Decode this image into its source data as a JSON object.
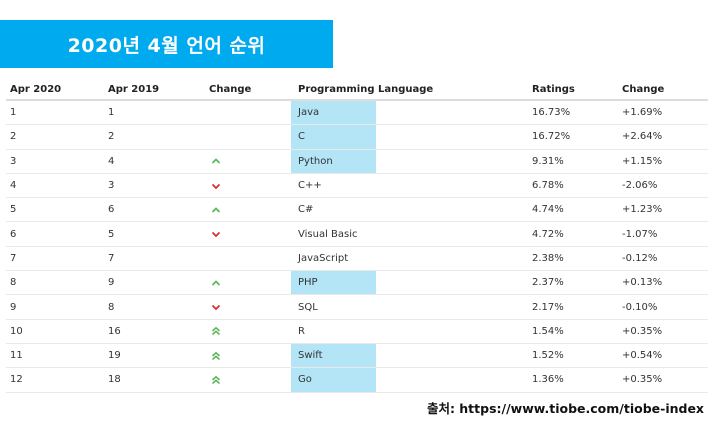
{
  "banner": {
    "title": "2020년 4월 언어 순위"
  },
  "table": {
    "headers": {
      "apr2020": "Apr 2020",
      "apr2019": "Apr 2019",
      "change": "Change",
      "language": "Programming Language",
      "ratings": "Ratings",
      "change2": "Change"
    },
    "rows": [
      {
        "apr2020": "1",
        "apr2019": "1",
        "trend": "none",
        "language": "Java",
        "ratings": "16.73%",
        "change": "+1.69%",
        "highlight": true
      },
      {
        "apr2020": "2",
        "apr2019": "2",
        "trend": "none",
        "language": "C",
        "ratings": "16.72%",
        "change": "+2.64%",
        "highlight": true
      },
      {
        "apr2020": "3",
        "apr2019": "4",
        "trend": "up",
        "language": "Python",
        "ratings": "9.31%",
        "change": "+1.15%",
        "highlight": true
      },
      {
        "apr2020": "4",
        "apr2019": "3",
        "trend": "down",
        "language": "C++",
        "ratings": "6.78%",
        "change": "-2.06%",
        "highlight": false
      },
      {
        "apr2020": "5",
        "apr2019": "6",
        "trend": "up",
        "language": "C#",
        "ratings": "4.74%",
        "change": "+1.23%",
        "highlight": false
      },
      {
        "apr2020": "6",
        "apr2019": "5",
        "trend": "down",
        "language": "Visual Basic",
        "ratings": "4.72%",
        "change": "-1.07%",
        "highlight": false
      },
      {
        "apr2020": "7",
        "apr2019": "7",
        "trend": "none",
        "language": "JavaScript",
        "ratings": "2.38%",
        "change": "-0.12%",
        "highlight": false
      },
      {
        "apr2020": "8",
        "apr2019": "9",
        "trend": "up",
        "language": "PHP",
        "ratings": "2.37%",
        "change": "+0.13%",
        "highlight": true
      },
      {
        "apr2020": "9",
        "apr2019": "8",
        "trend": "down",
        "language": "SQL",
        "ratings": "2.17%",
        "change": "-0.10%",
        "highlight": false
      },
      {
        "apr2020": "10",
        "apr2019": "16",
        "trend": "double-up",
        "language": "R",
        "ratings": "1.54%",
        "change": "+0.35%",
        "highlight": false
      },
      {
        "apr2020": "11",
        "apr2019": "19",
        "trend": "double-up",
        "language": "Swift",
        "ratings": "1.52%",
        "change": "+0.54%",
        "highlight": true
      },
      {
        "apr2020": "12",
        "apr2019": "18",
        "trend": "double-up",
        "language": "Go",
        "ratings": "1.36%",
        "change": "+0.35%",
        "highlight": true
      }
    ]
  },
  "colors": {
    "banner": "#00aaee",
    "highlight": "#b3e5f7",
    "up": "#5cb85c",
    "down": "#d9302c"
  },
  "source": {
    "text": "출처: https://www.tiobe.com/tiobe-index"
  }
}
